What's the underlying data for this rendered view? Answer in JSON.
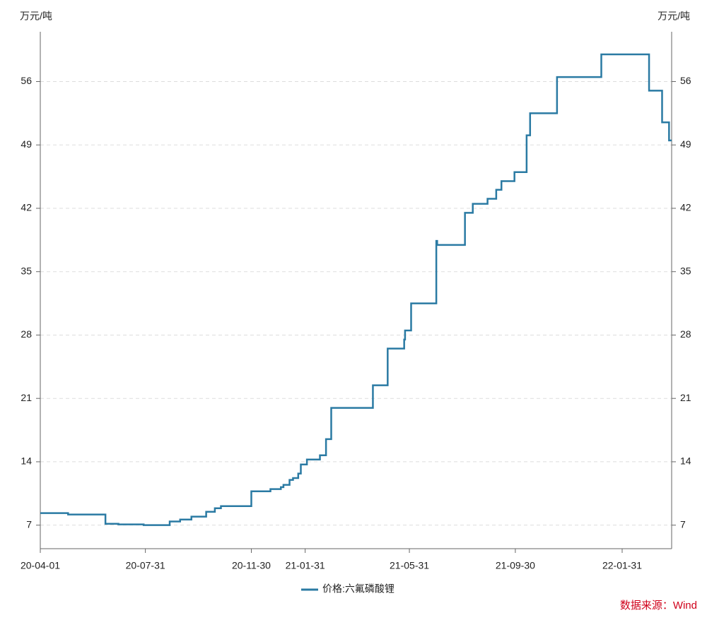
{
  "chart_data": {
    "type": "line",
    "step": "post",
    "y_label": "万元/吨",
    "y2_label": "万元/吨",
    "source": "数据来源：Wind",
    "xlim": [
      "20-04-01",
      "22-03-29"
    ],
    "xticks": [
      "20-04-01",
      "20-07-31",
      "20-11-30",
      "21-01-31",
      "21-05-31",
      "21-09-30",
      "22-01-31"
    ],
    "ylim": [
      4.4,
      61.5
    ],
    "yticks": [
      7,
      14,
      21,
      28,
      35,
      42,
      49,
      56
    ],
    "grid": true,
    "x": [
      "20-04-01",
      "20-05-03",
      "20-06-15",
      "20-06-30",
      "20-07-29",
      "20-08-28",
      "20-09-09",
      "20-09-22",
      "20-10-09",
      "20-10-19",
      "20-10-26",
      "20-11-30",
      "20-12-22",
      "21-01-03",
      "21-01-06",
      "21-01-13",
      "21-01-17",
      "21-01-23",
      "21-01-26",
      "21-02-02",
      "21-02-17",
      "21-02-24",
      "21-03-02",
      "21-04-19",
      "21-05-06",
      "21-05-25",
      "21-05-26",
      "21-06-02",
      "21-07-01",
      "21-07-02",
      "21-08-03",
      "21-08-12",
      "21-08-29",
      "21-09-08",
      "21-09-14",
      "21-09-29",
      "21-10-13",
      "21-10-17",
      "21-11-17",
      "22-01-07",
      "22-03-03",
      "22-03-18",
      "22-03-26",
      "22-03-29"
    ],
    "series": [
      {
        "name": "价格:六氟磷酸锂",
        "color": "#2a7aa3",
        "values": [
          8.33,
          8.17,
          7.15,
          7.08,
          7.0,
          7.4,
          7.62,
          7.94,
          8.48,
          8.87,
          9.1,
          10.74,
          10.98,
          11.2,
          11.45,
          12.0,
          12.2,
          12.7,
          13.7,
          14.25,
          14.72,
          16.5,
          19.95,
          22.45,
          26.5,
          27.5,
          28.5,
          31.5,
          38.4,
          37.95,
          41.5,
          42.5,
          43.05,
          44.05,
          45.0,
          46.0,
          50.06,
          52.5,
          56.5,
          59.0,
          55.0,
          51.5,
          49.5,
          49.5
        ]
      }
    ]
  }
}
